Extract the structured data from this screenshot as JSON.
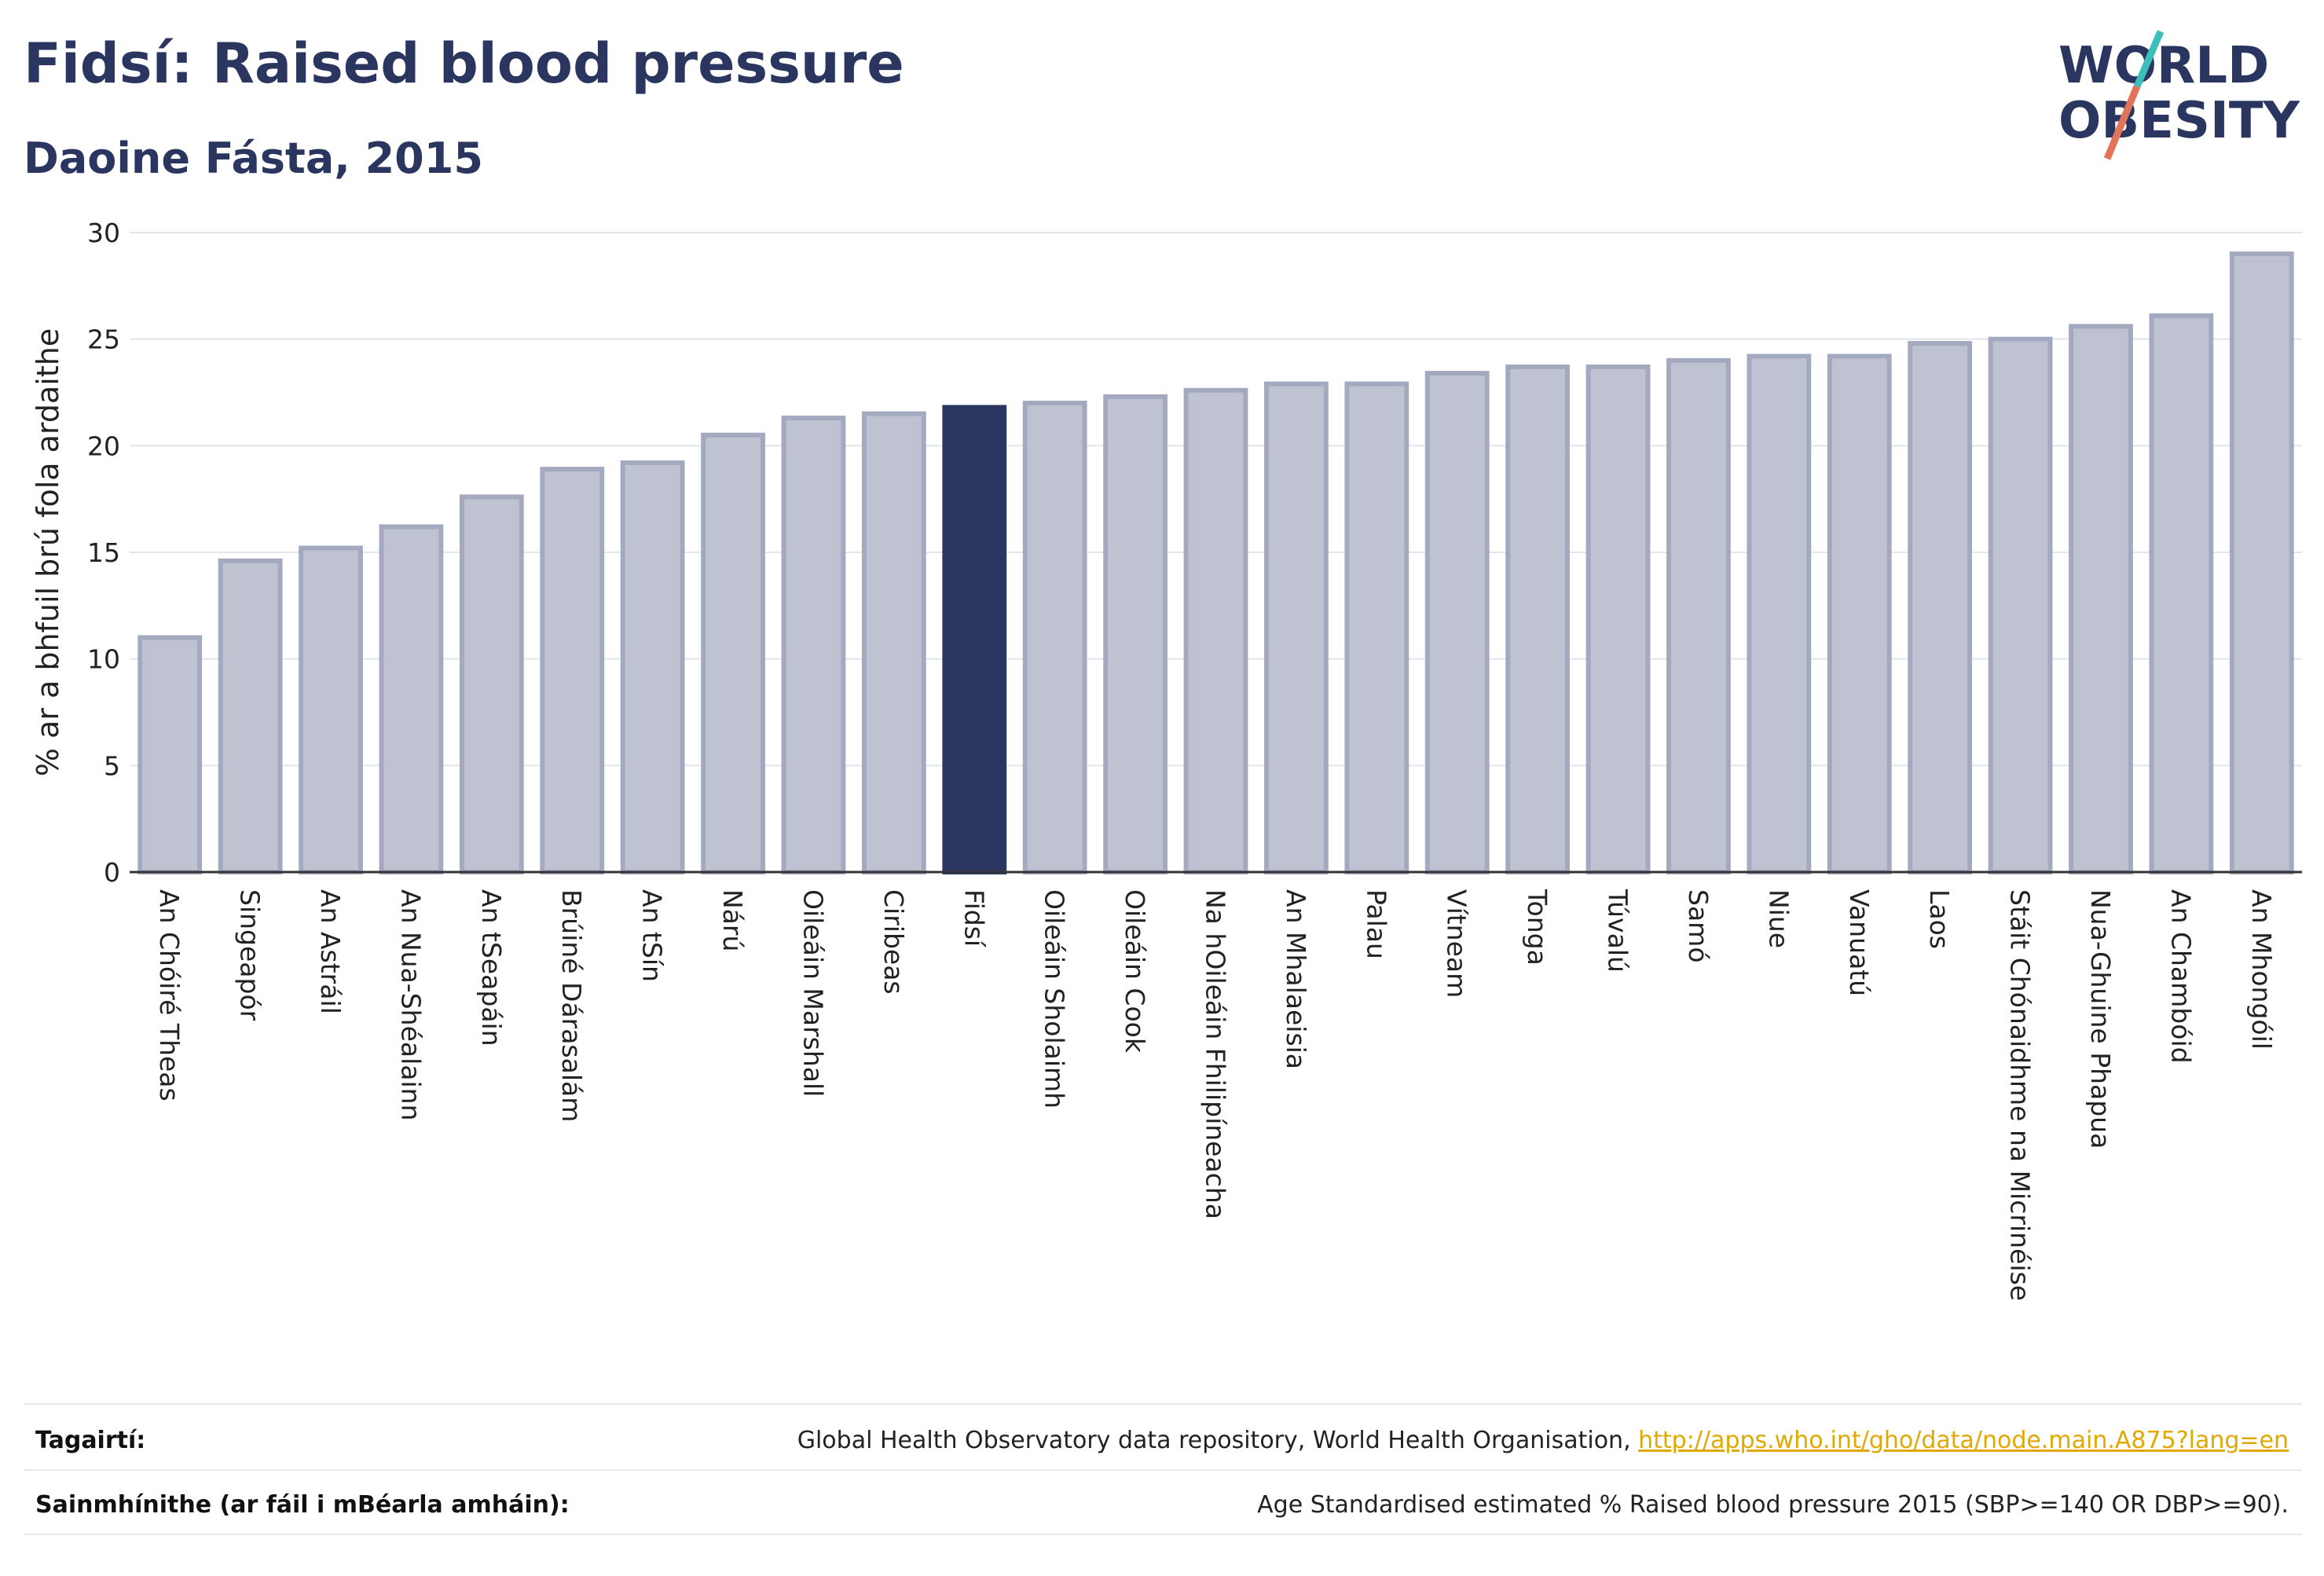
{
  "header": {
    "title": "Fidsí: Raised blood pressure",
    "subtitle": "Daoine Fásta, 2015"
  },
  "logo": {
    "line1": "WORLD",
    "line2": "OBESITY",
    "slash_colors": [
      "#3bbfb8",
      "#e2745b"
    ]
  },
  "colors": {
    "bar": "#bfc3d1",
    "bar_stroke": "#a3a9bf",
    "highlight": "#2a3660",
    "text": "#2a3660",
    "link": "#e0a800"
  },
  "chart_data": {
    "type": "bar",
    "ylabel": "% ar a bhfuil brú fola ardaithe",
    "xlabel": "",
    "ylim": [
      0,
      30
    ],
    "yticks": [
      0,
      5,
      10,
      15,
      20,
      25,
      30
    ],
    "grid": true,
    "highlight": "Fidsí",
    "categories": [
      "An Chóiré Theas",
      "Singeapór",
      "An Astráil",
      "An Nua-Shéalainn",
      "An tSeapáin",
      "Brúiné Dárasalám",
      "An tSín",
      "Nárú",
      "Oileáin Marshall",
      "Ciribeas",
      "Fidsí",
      "Oileáin Sholaimh",
      "Oileáin Cook",
      "Na hOileáin Fhilipíneacha",
      "An Mhalaeisia",
      "Palau",
      "Vítneam",
      "Tonga",
      "Túvalú",
      "Samó",
      "Niue",
      "Vanuatú",
      "Laos",
      "Stáit Chónaidhme na Micrinéise",
      "Nua-Ghuine Phapua",
      "An Chambóid",
      "An Mhongóil"
    ],
    "values": [
      11.0,
      14.6,
      15.2,
      16.2,
      17.6,
      18.9,
      19.2,
      20.5,
      21.3,
      21.5,
      21.8,
      22.0,
      22.3,
      22.6,
      22.9,
      22.9,
      23.4,
      23.7,
      23.7,
      24.0,
      24.2,
      24.2,
      24.8,
      25.0,
      25.6,
      26.1,
      29.0
    ]
  },
  "footer": {
    "references_label": "Tagairtí:",
    "references_text": "Global Health Observatory data repository, World Health Organisation, ",
    "references_link": "http://apps.who.int/gho/data/node.main.A875?lang=en",
    "definitions_label": "Sainmhínithe (ar fáil i mBéarla amháin):",
    "definitions_text": "Age Standardised estimated % Raised blood pressure 2015 (SBP>=140 OR DBP>=90)."
  }
}
